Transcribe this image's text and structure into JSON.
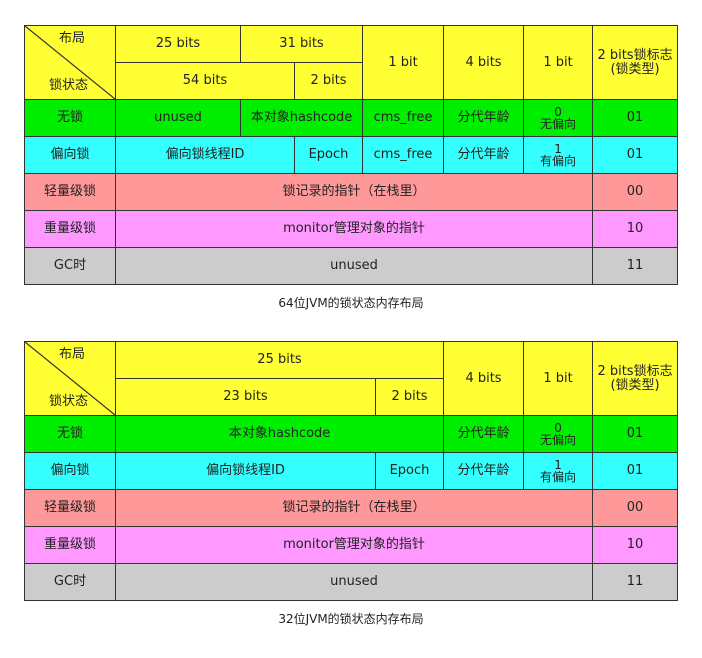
{
  "common": {
    "header_top": "布局",
    "header_bottom": "锁状态",
    "bits_1": "1 bit",
    "bits_4": "4 bits",
    "lock_flag_header": "2 bits锁标志\n(锁类型)",
    "rows": {
      "no_lock": {
        "state": "无锁",
        "hashcode": "本对象hashcode",
        "cms": "cms_free",
        "age": "分代年龄",
        "biased_flag": "0\n无偏向",
        "lock_flag": "01"
      },
      "biased": {
        "state": "偏向锁",
        "thread_id": "偏向锁线程ID",
        "epoch": "Epoch",
        "cms": "cms_free",
        "age": "分代年龄",
        "biased_flag": "1\n有偏向",
        "lock_flag": "01"
      },
      "lightweight": {
        "state": "轻量级锁",
        "content": "锁记录的指针（在栈里）",
        "lock_flag": "00"
      },
      "heavyweight": {
        "state": "重量级锁",
        "content": "monitor管理对象的指针",
        "lock_flag": "10"
      },
      "gc": {
        "state": "GC时",
        "content": "unused",
        "lock_flag": "11"
      }
    }
  },
  "table64": {
    "bits_25": "25 bits",
    "bits_31": "31 bits",
    "bits_54": "54 bits",
    "bits_2": "2 bits",
    "unused": "unused",
    "caption": "64位JVM的锁状态内存布局"
  },
  "table32": {
    "bits_25": "25 bits",
    "bits_23": "23 bits",
    "bits_2": "2 bits",
    "caption": "32位JVM的锁状态内存布局"
  }
}
